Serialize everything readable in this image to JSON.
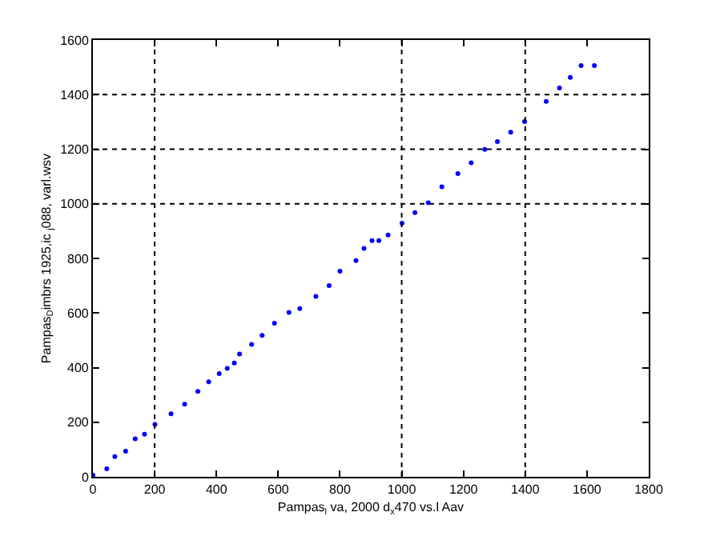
{
  "chart_data": {
    "type": "scatter",
    "xlabel": "Pampas$_{l}$ va, 2000 d$_{x}$470 vs.l Aav",
    "ylabel": "Pampas$_{D}$imbrs 1925,ic $_{j}$088, varl.wsv",
    "x": [
      0,
      45,
      71,
      106,
      137,
      167,
      201,
      253,
      297,
      340,
      375,
      409,
      435,
      458,
      475,
      514,
      548,
      588,
      635,
      670,
      722,
      765,
      800,
      852,
      878,
      904,
      926,
      956,
      1001,
      1043,
      1086,
      1130,
      1182,
      1225,
      1269,
      1310,
      1353,
      1398,
      1468,
      1511,
      1546,
      1581,
      1624
    ],
    "series": [
      {
        "color": "#0000ff",
        "values": [
          6,
          29,
          74,
          94,
          139,
          156,
          192,
          231,
          266,
          313,
          348,
          378,
          397,
          417,
          450,
          485,
          518,
          563,
          602,
          616,
          661,
          700,
          753,
          792,
          837,
          865,
          865,
          886,
          929,
          968,
          1004,
          1062,
          1111,
          1150,
          1199,
          1228,
          1262,
          1301,
          1375,
          1424,
          1463,
          1506,
          1506
        ]
      }
    ],
    "xlim": [
      0,
      1800
    ],
    "xticks": [
      0,
      200,
      400,
      600,
      800,
      1000,
      1200,
      1400,
      1600,
      1800
    ],
    "ylim": [
      0,
      1600
    ],
    "yticks": [
      0,
      200,
      400,
      600,
      800,
      1000,
      1200,
      1400,
      1600
    ],
    "marker": "circle",
    "grid": false,
    "ref_lines": [
      {
        "axis": "x",
        "value": 200,
        "color": "#000000",
        "line_style": "dotted"
      },
      {
        "axis": "x",
        "value": 1000,
        "color": "#000000",
        "line_style": "dotted"
      },
      {
        "axis": "x",
        "value": 1400,
        "color": "#000000",
        "line_style": "dotted"
      },
      {
        "axis": "y",
        "value": 1000,
        "color": "#000000",
        "line_style": "dotted"
      },
      {
        "axis": "y",
        "value": 1200,
        "color": "#000000",
        "line_style": "dotted"
      },
      {
        "axis": "y",
        "value": 1400,
        "color": "#000000",
        "line_style": "dotted"
      }
    ]
  }
}
